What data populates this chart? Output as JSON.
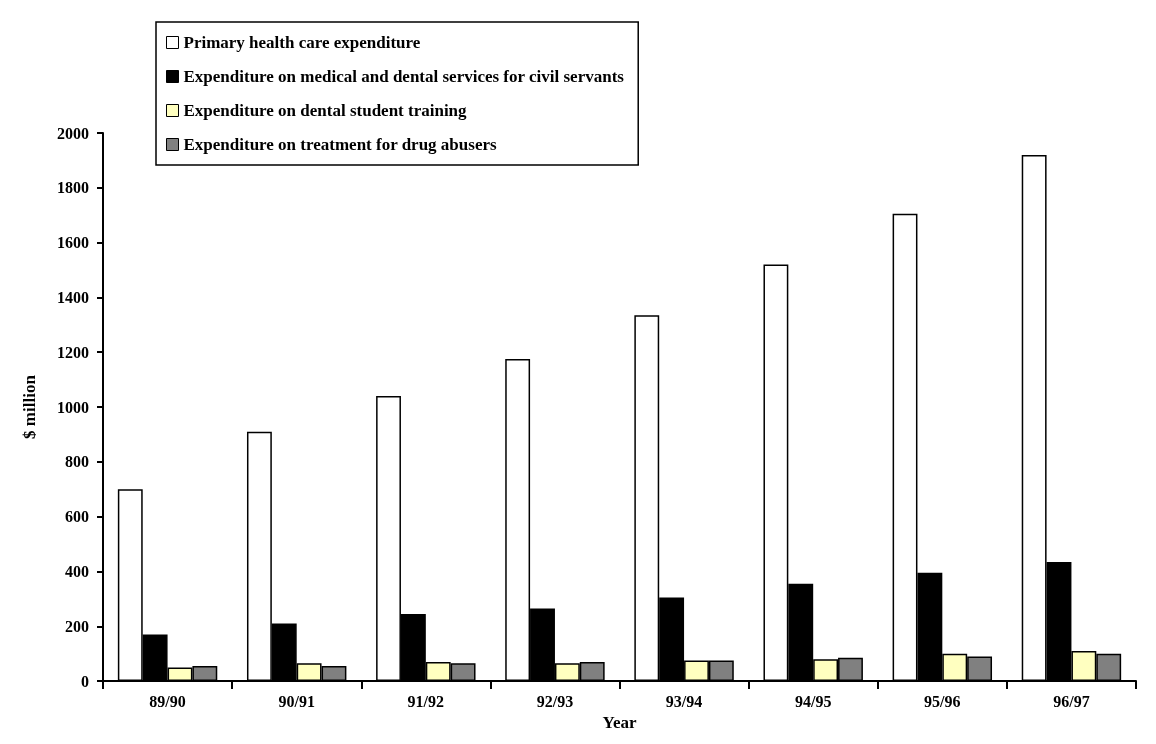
{
  "chart_data": {
    "type": "bar",
    "xlabel": "Year",
    "ylabel": "$ million",
    "categories": [
      "89/90",
      "90/91",
      "91/92",
      "92/93",
      "93/94",
      "94/95",
      "95/96",
      "96/97"
    ],
    "series": [
      {
        "name": "Primary health care expenditure",
        "color": "#ffffff",
        "values": [
          700,
          910,
          1040,
          1175,
          1335,
          1520,
          1705,
          1920
        ]
      },
      {
        "name": "Expenditure on medical and dental services for civil servants",
        "color": "#000000",
        "values": [
          170,
          210,
          245,
          265,
          305,
          355,
          395,
          435
        ]
      },
      {
        "name": "Expenditure on dental student training",
        "color": "#ffffc0",
        "values": [
          50,
          65,
          70,
          65,
          75,
          80,
          100,
          110
        ]
      },
      {
        "name": "Expenditure on treatment for drug abusers",
        "color": "#808080",
        "values": [
          55,
          55,
          65,
          70,
          75,
          85,
          90,
          100
        ]
      }
    ],
    "ylim": [
      0,
      2000
    ],
    "yticks": [
      0,
      200,
      400,
      600,
      800,
      1000,
      1200,
      1400,
      1600,
      1800,
      2000
    ],
    "grid": false,
    "legend": "top left"
  }
}
